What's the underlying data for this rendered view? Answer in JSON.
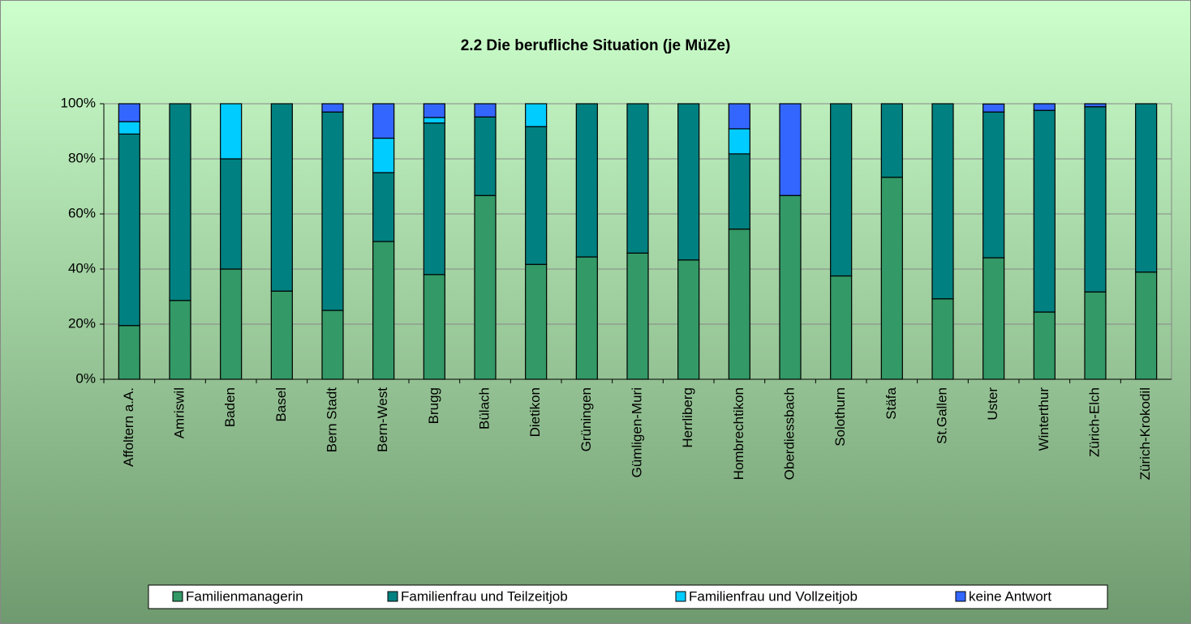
{
  "chart_data": {
    "type": "stacked_bar",
    "title": "2.2 Die berufliche Situation (je MüZe)",
    "categories": [
      "Affoltern a.A.",
      "Amriswil",
      "Baden",
      "Basel",
      "Bern Stadt",
      "Bern-West",
      "Brugg",
      "Bülach",
      "Dietikon",
      "Grüningen",
      "Gümligen-Muri",
      "Herrliberg",
      "Hombrechtikon",
      "Oberdiessbach",
      "Solothurn",
      "Stäfa",
      "St.Gallen",
      "Uster",
      "Winterthur",
      "Zürich-Elch",
      "Zürich-Krokodil"
    ],
    "series": [
      {
        "name": "Familienmanagerin",
        "color": "#339966",
        "values": [
          19.5,
          28.6,
          40,
          32,
          25,
          50,
          38,
          66.7,
          41.7,
          44.4,
          45.8,
          43.3,
          54.5,
          66.7,
          37.5,
          73.3,
          29.2,
          44.1,
          24.4,
          31.7,
          38.9
        ]
      },
      {
        "name": "Familienfrau und Teilzeitjob",
        "color": "#008080",
        "values": [
          69.5,
          71.4,
          40,
          68,
          72,
          25,
          55,
          28.5,
          50,
          55.6,
          54.2,
          56.7,
          27.3,
          0,
          62.5,
          26.7,
          70.8,
          52.9,
          73.2,
          67.2,
          61.1
        ]
      },
      {
        "name": "Familienfrau und Vollzeitjob",
        "color": "#00ccff",
        "values": [
          4.5,
          0,
          20,
          0,
          0,
          12.5,
          2,
          0,
          8.3,
          0,
          0,
          0,
          9.1,
          0,
          0,
          0,
          0,
          0,
          0,
          0,
          0
        ]
      },
      {
        "name": "keine Antwort",
        "color": "#3366ff",
        "values": [
          6.5,
          0,
          0,
          0,
          3,
          12.5,
          5,
          4.8,
          0,
          0,
          0,
          0,
          9.1,
          33.3,
          0,
          0,
          0,
          2.9,
          2.4,
          1.1,
          0
        ]
      }
    ],
    "ylim": [
      0,
      100
    ],
    "yticks": [
      {
        "value": 0,
        "label": "0%"
      },
      {
        "value": 20,
        "label": "20%"
      },
      {
        "value": 40,
        "label": "40%"
      },
      {
        "value": 60,
        "label": "60%"
      },
      {
        "value": 80,
        "label": "80%"
      },
      {
        "value": 100,
        "label": "100%"
      }
    ],
    "grid": true,
    "legend": "bottom"
  }
}
